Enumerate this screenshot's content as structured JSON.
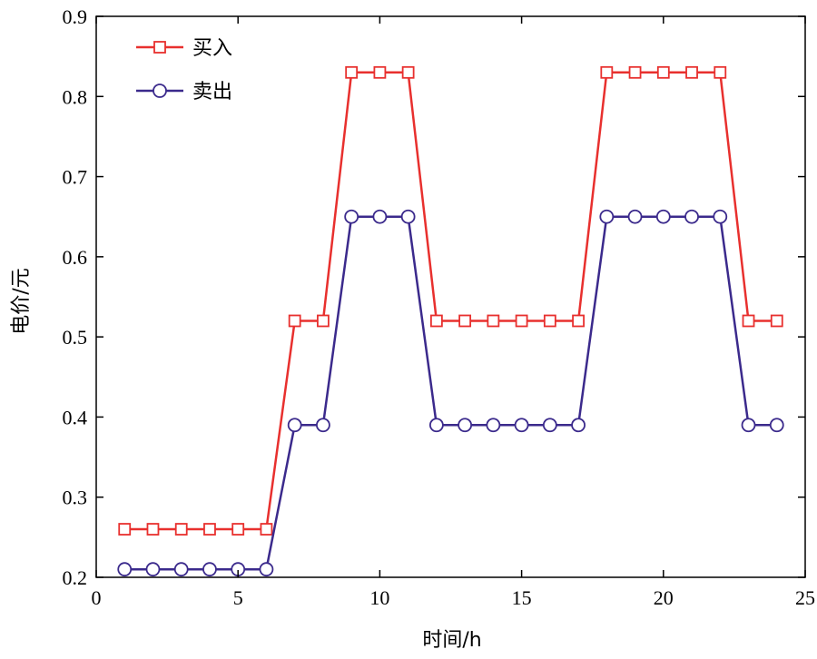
{
  "chart_data": {
    "type": "line",
    "xlabel": "时间/h",
    "ylabel": "电价/元",
    "xlim": [
      0,
      25
    ],
    "ylim": [
      0.2,
      0.9
    ],
    "xticks": [
      0,
      5,
      10,
      15,
      20,
      25
    ],
    "xtick_labels": [
      "0",
      "5",
      "10",
      "15",
      "20",
      "25"
    ],
    "yticks": [
      0.2,
      0.3,
      0.4,
      0.5,
      0.6,
      0.7,
      0.8,
      0.9
    ],
    "ytick_labels": [
      "0.2",
      "0.3",
      "0.4",
      "0.5",
      "0.6",
      "0.7",
      "0.8",
      "0.9"
    ],
    "grid": false,
    "legend_position": "top-left",
    "x": [
      1,
      2,
      3,
      4,
      5,
      6,
      7,
      8,
      9,
      10,
      11,
      12,
      13,
      14,
      15,
      16,
      17,
      18,
      19,
      20,
      21,
      22,
      23,
      24
    ],
    "series": [
      {
        "name": "买入",
        "color": "#e8302e",
        "marker": "square",
        "values": [
          0.26,
          0.26,
          0.26,
          0.26,
          0.26,
          0.26,
          0.52,
          0.52,
          0.83,
          0.83,
          0.83,
          0.52,
          0.52,
          0.52,
          0.52,
          0.52,
          0.52,
          0.83,
          0.83,
          0.83,
          0.83,
          0.83,
          0.52,
          0.52
        ]
      },
      {
        "name": "卖出",
        "color": "#3b2a8c",
        "marker": "circle",
        "values": [
          0.21,
          0.21,
          0.21,
          0.21,
          0.21,
          0.21,
          0.39,
          0.39,
          0.65,
          0.65,
          0.65,
          0.39,
          0.39,
          0.39,
          0.39,
          0.39,
          0.39,
          0.65,
          0.65,
          0.65,
          0.65,
          0.65,
          0.39,
          0.39
        ]
      }
    ]
  }
}
